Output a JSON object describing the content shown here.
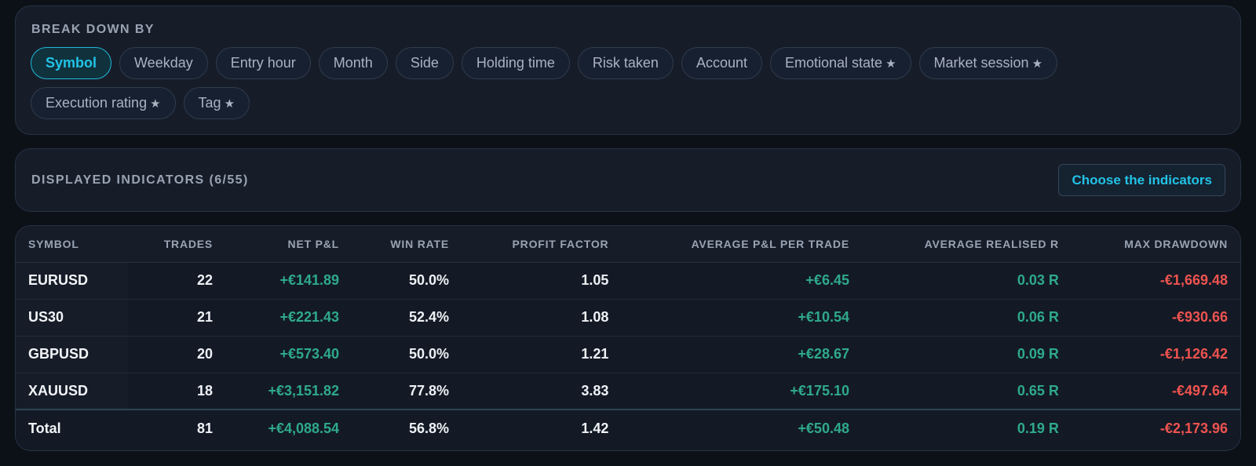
{
  "breakdown": {
    "title": "BREAK DOWN BY",
    "chips_row1": [
      {
        "label": "Symbol",
        "star": "",
        "active": true
      },
      {
        "label": "Weekday",
        "star": ""
      },
      {
        "label": "Entry hour",
        "star": ""
      },
      {
        "label": "Month",
        "star": ""
      },
      {
        "label": "Side",
        "star": ""
      },
      {
        "label": "Holding time",
        "star": ""
      },
      {
        "label": "Risk taken",
        "star": ""
      },
      {
        "label": "Account",
        "star": ""
      },
      {
        "label": "Emotional state",
        "star": "★"
      },
      {
        "label": "Market session",
        "star": "★"
      }
    ],
    "chips_row2": [
      {
        "label": "Execution rating",
        "star": "★"
      },
      {
        "label": "Tag",
        "star": "★"
      }
    ]
  },
  "indicators": {
    "title": "DISPLAYED INDICATORS (6/55)",
    "choose_button": "Choose the indicators"
  },
  "table": {
    "headers": [
      "SYMBOL",
      "TRADES",
      "NET P&L",
      "WIN RATE",
      "PROFIT FACTOR",
      "AVERAGE P&L PER TRADE",
      "AVERAGE REALISED R",
      "MAX DRAWDOWN"
    ],
    "rows": [
      [
        "EURUSD",
        "22",
        "+€141.89",
        "50.0%",
        "1.05",
        "+€6.45",
        "0.03 R",
        "-€1,669.48"
      ],
      [
        "US30",
        "21",
        "+€221.43",
        "52.4%",
        "1.08",
        "+€10.54",
        "0.06 R",
        "-€930.66"
      ],
      [
        "GBPUSD",
        "20",
        "+€573.40",
        "50.0%",
        "1.21",
        "+€28.67",
        "0.09 R",
        "-€1,126.42"
      ],
      [
        "XAUUSD",
        "18",
        "+€3,151.82",
        "77.8%",
        "3.83",
        "+€175.10",
        "0.65 R",
        "-€497.64"
      ]
    ],
    "total": [
      "Total",
      "81",
      "+€4,088.54",
      "56.8%",
      "1.42",
      "+€50.48",
      "0.19 R",
      "-€2,173.96"
    ]
  },
  "colors": {
    "accent": "#22c3e6",
    "positive": "#2fa98c",
    "negative": "#ef5350"
  }
}
